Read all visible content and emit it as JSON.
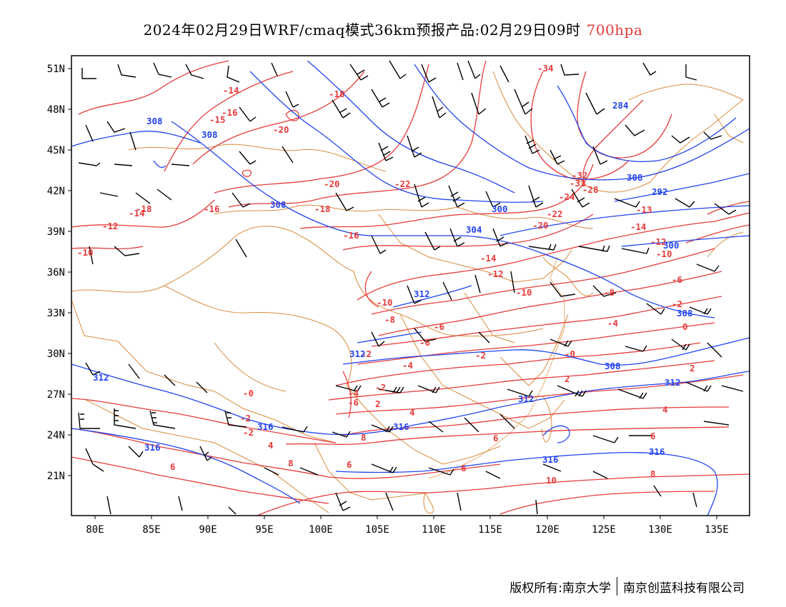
{
  "title": {
    "main": "2024年02月29日WRF/cmaq模式36km预报产品:02月29日09时",
    "level": "700hpa",
    "level_color": "#e53b3b"
  },
  "map": {
    "lon_ticks": [
      "80E",
      "85E",
      "90E",
      "95E",
      "100E",
      "105E",
      "110E",
      "115E",
      "120E",
      "125E",
      "130E",
      "135E"
    ],
    "lat_ticks": [
      "51N",
      "48N",
      "45N",
      "42N",
      "39N",
      "36N",
      "33N",
      "30N",
      "27N",
      "24N",
      "21N"
    ],
    "lon_range": [
      78,
      138
    ],
    "lat_range": [
      18,
      52
    ],
    "temperature_labels": [
      "-34",
      "-14",
      "-18",
      "-16",
      "-15",
      "-20",
      "-22",
      "-20",
      "-18",
      "-32",
      "-31",
      "-28",
      "-24",
      "-22",
      "-20",
      "-13",
      "-14",
      "-12",
      "-18",
      "-14",
      "-16",
      "-16",
      "-14",
      "-12",
      "-10",
      "-12",
      "-10",
      "-10",
      "-6",
      "-8",
      "-6",
      "-4",
      "-2",
      "-2",
      "-10",
      "-8",
      "-6",
      "-2",
      "-0",
      "-4",
      "-2",
      "-0",
      "0",
      "2",
      "2",
      "2",
      "4",
      "-2",
      "-4",
      "-6",
      "-2",
      "4",
      "4",
      "6",
      "8",
      "6",
      "6",
      "8",
      "6",
      "6",
      "8",
      "10"
    ],
    "height_labels": [
      "284",
      "308",
      "308",
      "308",
      "292",
      "300",
      "308",
      "304",
      "300",
      "312",
      "308",
      "312",
      "312",
      "308",
      "312",
      "312",
      "316",
      "316",
      "316",
      "316",
      "316"
    ],
    "temperature_color": "#e53b3b",
    "height_color": "#2244ee",
    "border_color": "#d98a3c"
  },
  "credit": {
    "left": "版权所有:南京大学",
    "right": "南京创蓝科技有限公司"
  }
}
